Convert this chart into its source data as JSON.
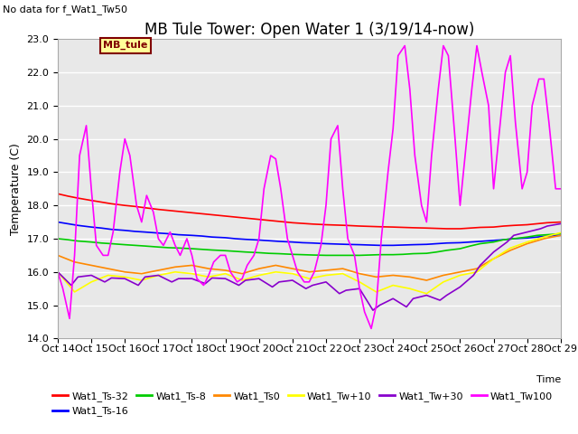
{
  "title": "MB Tule Tower: Open Water 1 (3/19/14-now)",
  "no_data_text": "No data for f_Wat1_Tw50",
  "xlabel": "Time",
  "ylabel": "Temperature (C)",
  "ylim": [
    14.0,
    23.0
  ],
  "yticks": [
    14.0,
    15.0,
    16.0,
    17.0,
    18.0,
    19.0,
    20.0,
    21.0,
    22.0,
    23.0
  ],
  "xlim": [
    0,
    15
  ],
  "xtick_labels": [
    "Oct 14",
    "Oct 15",
    "Oct 16",
    "Oct 17",
    "Oct 18",
    "Oct 19",
    "Oct 20",
    "Oct 21",
    "Oct 22",
    "Oct 23",
    "Oct 24",
    "Oct 25",
    "Oct 26",
    "Oct 27",
    "Oct 28",
    "Oct 29"
  ],
  "xtick_positions": [
    0,
    1,
    2,
    3,
    4,
    5,
    6,
    7,
    8,
    9,
    10,
    11,
    12,
    13,
    14,
    15
  ],
  "mb_tule_label": "MB_tule",
  "legend_entries": [
    {
      "label": "Wat1_Ts-32",
      "color": "#ff0000"
    },
    {
      "label": "Wat1_Ts-16",
      "color": "#0000ff"
    },
    {
      "label": "Wat1_Ts-8",
      "color": "#00cc00"
    },
    {
      "label": "Wat1_Ts0",
      "color": "#ff8800"
    },
    {
      "label": "Wat1_Tw+10",
      "color": "#ffff00"
    },
    {
      "label": "Wat1_Tw+30",
      "color": "#8800cc"
    },
    {
      "label": "Wat1_Tw100",
      "color": "#ff00ff"
    }
  ],
  "background_color": "#ffffff",
  "plot_bg_color": "#e8e8e8",
  "grid_color": "#ffffff",
  "title_fontsize": 12,
  "axis_label_fontsize": 9,
  "tick_fontsize": 8,
  "series": {
    "Wat1_Ts-32": {
      "color": "#ff0000",
      "x": [
        0,
        0.3,
        0.6,
        1,
        1.3,
        1.6,
        2,
        2.3,
        2.6,
        3,
        3.3,
        3.6,
        4,
        4.3,
        4.6,
        5,
        5.3,
        5.6,
        6,
        6.3,
        6.6,
        7,
        7.3,
        7.6,
        8,
        8.3,
        8.6,
        9,
        9.3,
        9.6,
        10,
        10.3,
        10.6,
        11,
        11.3,
        11.6,
        12,
        12.3,
        12.6,
        13,
        13.3,
        13.6,
        14,
        14.3,
        14.6,
        15
      ],
      "y": [
        18.35,
        18.28,
        18.22,
        18.15,
        18.1,
        18.05,
        18.0,
        17.97,
        17.93,
        17.88,
        17.85,
        17.82,
        17.78,
        17.75,
        17.72,
        17.68,
        17.65,
        17.62,
        17.58,
        17.55,
        17.52,
        17.48,
        17.46,
        17.44,
        17.42,
        17.41,
        17.4,
        17.38,
        17.37,
        17.36,
        17.35,
        17.34,
        17.33,
        17.32,
        17.31,
        17.3,
        17.3,
        17.32,
        17.34,
        17.35,
        17.38,
        17.4,
        17.42,
        17.45,
        17.48,
        17.5
      ]
    },
    "Wat1_Ts-16": {
      "color": "#0000ff",
      "x": [
        0,
        0.3,
        0.6,
        1,
        1.3,
        1.6,
        2,
        2.3,
        2.6,
        3,
        3.3,
        3.6,
        4,
        4.3,
        4.6,
        5,
        5.3,
        5.6,
        6,
        6.3,
        6.6,
        7,
        7.3,
        7.6,
        8,
        8.3,
        8.6,
        9,
        9.3,
        9.6,
        10,
        10.3,
        10.6,
        11,
        11.3,
        11.6,
        12,
        12.3,
        12.6,
        13,
        13.3,
        13.6,
        14,
        14.3,
        14.6,
        15
      ],
      "y": [
        17.5,
        17.45,
        17.4,
        17.35,
        17.32,
        17.28,
        17.25,
        17.22,
        17.2,
        17.17,
        17.15,
        17.12,
        17.1,
        17.08,
        17.05,
        17.03,
        17.0,
        16.98,
        16.96,
        16.94,
        16.92,
        16.9,
        16.88,
        16.87,
        16.85,
        16.84,
        16.83,
        16.82,
        16.81,
        16.8,
        16.8,
        16.81,
        16.82,
        16.83,
        16.85,
        16.87,
        16.88,
        16.9,
        16.92,
        16.95,
        16.97,
        17.0,
        17.02,
        17.05,
        17.08,
        17.1
      ]
    },
    "Wat1_Ts-8": {
      "color": "#00cc00",
      "x": [
        0,
        0.3,
        0.6,
        1,
        1.3,
        1.6,
        2,
        2.3,
        2.6,
        3,
        3.3,
        3.6,
        4,
        4.3,
        4.6,
        5,
        5.3,
        5.6,
        6,
        6.3,
        6.6,
        7,
        7.3,
        7.6,
        8,
        8.3,
        8.6,
        9,
        9.3,
        9.6,
        10,
        10.3,
        10.6,
        11,
        11.3,
        11.6,
        12,
        12.3,
        12.6,
        13,
        13.3,
        13.6,
        14,
        14.3,
        14.6,
        15
      ],
      "y": [
        17.0,
        16.97,
        16.93,
        16.9,
        16.87,
        16.85,
        16.82,
        16.8,
        16.78,
        16.75,
        16.73,
        16.72,
        16.7,
        16.68,
        16.66,
        16.64,
        16.62,
        16.6,
        16.58,
        16.56,
        16.55,
        16.53,
        16.52,
        16.51,
        16.5,
        16.5,
        16.5,
        16.5,
        16.51,
        16.52,
        16.52,
        16.53,
        16.55,
        16.56,
        16.6,
        16.65,
        16.7,
        16.78,
        16.85,
        16.9,
        16.97,
        17.0,
        17.05,
        17.1,
        17.12,
        17.15
      ]
    },
    "Wat1_Ts0": {
      "color": "#ff8800",
      "x": [
        0,
        0.5,
        1,
        1.5,
        2,
        2.5,
        3,
        3.5,
        4,
        4.5,
        5,
        5.5,
        6,
        6.5,
        7,
        7.5,
        8,
        8.5,
        9,
        9.5,
        10,
        10.5,
        11,
        11.5,
        12,
        12.5,
        13,
        13.5,
        14,
        14.5,
        15
      ],
      "y": [
        16.5,
        16.3,
        16.2,
        16.1,
        16.0,
        15.95,
        16.05,
        16.15,
        16.2,
        16.1,
        16.05,
        15.95,
        16.1,
        16.2,
        16.1,
        16.0,
        16.05,
        16.1,
        15.95,
        15.85,
        15.9,
        15.85,
        15.75,
        15.9,
        16.0,
        16.1,
        16.4,
        16.65,
        16.85,
        17.0,
        17.1
      ]
    },
    "Wat1_Tw+10": {
      "color": "#ffff00",
      "x": [
        0,
        0.5,
        1,
        1.5,
        2,
        2.5,
        3,
        3.5,
        4,
        4.5,
        5,
        5.5,
        6,
        6.5,
        7,
        7.5,
        8,
        8.5,
        9,
        9.5,
        10,
        10.5,
        11,
        11.5,
        12,
        12.5,
        13,
        13.5,
        14,
        14.5,
        15
      ],
      "y": [
        16.0,
        15.4,
        15.7,
        15.9,
        15.85,
        15.75,
        15.9,
        16.0,
        15.95,
        15.85,
        15.95,
        15.75,
        15.9,
        16.0,
        15.95,
        15.8,
        15.9,
        15.95,
        15.7,
        15.4,
        15.6,
        15.5,
        15.35,
        15.7,
        15.9,
        16.0,
        16.4,
        16.72,
        16.9,
        17.05,
        17.18
      ]
    },
    "Wat1_Tw+30": {
      "color": "#8800cc",
      "x": [
        0,
        0.4,
        0.6,
        1,
        1.4,
        1.6,
        2,
        2.4,
        2.6,
        3,
        3.4,
        3.6,
        4,
        4.4,
        4.6,
        5,
        5.4,
        5.6,
        6,
        6.4,
        6.6,
        7,
        7.4,
        7.6,
        8,
        8.4,
        8.6,
        9,
        9.4,
        9.6,
        10,
        10.4,
        10.6,
        11,
        11.4,
        11.6,
        12,
        12.4,
        12.6,
        13,
        13.4,
        13.6,
        14,
        14.4,
        14.6,
        15
      ],
      "y": [
        16.0,
        15.6,
        15.85,
        15.9,
        15.7,
        15.82,
        15.8,
        15.6,
        15.85,
        15.9,
        15.7,
        15.8,
        15.8,
        15.65,
        15.82,
        15.8,
        15.6,
        15.75,
        15.8,
        15.55,
        15.7,
        15.75,
        15.5,
        15.6,
        15.7,
        15.35,
        15.45,
        15.5,
        14.85,
        15.0,
        15.2,
        14.95,
        15.2,
        15.3,
        15.15,
        15.3,
        15.55,
        15.9,
        16.2,
        16.6,
        16.9,
        17.1,
        17.2,
        17.3,
        17.38,
        17.45
      ]
    },
    "Wat1_Tw100": {
      "color": "#ff00ff",
      "x": [
        0,
        0.15,
        0.35,
        0.5,
        0.65,
        0.85,
        1.0,
        1.15,
        1.35,
        1.5,
        1.65,
        1.85,
        2.0,
        2.15,
        2.35,
        2.5,
        2.65,
        2.85,
        3.0,
        3.15,
        3.35,
        3.5,
        3.65,
        3.85,
        4.0,
        4.15,
        4.35,
        4.5,
        4.65,
        4.85,
        5.0,
        5.15,
        5.35,
        5.5,
        5.65,
        5.85,
        6.0,
        6.15,
        6.35,
        6.5,
        6.65,
        6.85,
        7.0,
        7.15,
        7.35,
        7.5,
        7.65,
        7.85,
        8.0,
        8.15,
        8.35,
        8.5,
        8.65,
        8.85,
        9.0,
        9.15,
        9.35,
        9.5,
        9.65,
        9.85,
        10.0,
        10.15,
        10.35,
        10.5,
        10.65,
        10.85,
        11.0,
        11.15,
        11.35,
        11.5,
        11.65,
        11.85,
        12.0,
        12.15,
        12.35,
        12.5,
        12.65,
        12.85,
        13.0,
        13.15,
        13.35,
        13.5,
        13.65,
        13.85,
        14.0,
        14.15,
        14.35,
        14.5,
        14.65,
        14.85,
        15.0
      ],
      "y": [
        16.0,
        15.5,
        14.6,
        16.5,
        19.5,
        20.4,
        18.5,
        16.8,
        16.5,
        16.5,
        17.2,
        19.0,
        20.0,
        19.5,
        18.0,
        17.5,
        18.3,
        17.8,
        17.0,
        16.8,
        17.2,
        16.8,
        16.5,
        17.0,
        16.5,
        15.8,
        15.6,
        15.9,
        16.3,
        16.5,
        16.5,
        16.0,
        15.7,
        15.8,
        16.2,
        16.5,
        17.0,
        18.5,
        19.5,
        19.4,
        18.5,
        17.0,
        16.5,
        16.0,
        15.7,
        15.7,
        16.0,
        16.8,
        18.0,
        20.0,
        20.4,
        18.5,
        17.0,
        16.5,
        15.5,
        14.8,
        14.3,
        15.0,
        17.0,
        19.0,
        20.3,
        22.5,
        22.8,
        21.5,
        19.5,
        18.0,
        17.5,
        19.5,
        21.5,
        22.8,
        22.5,
        20.0,
        18.0,
        19.5,
        21.5,
        22.8,
        22.0,
        21.0,
        18.5,
        20.0,
        22.0,
        22.5,
        20.5,
        18.5,
        19.0,
        21.0,
        21.8,
        21.8,
        20.5,
        18.5,
        18.5
      ]
    }
  }
}
